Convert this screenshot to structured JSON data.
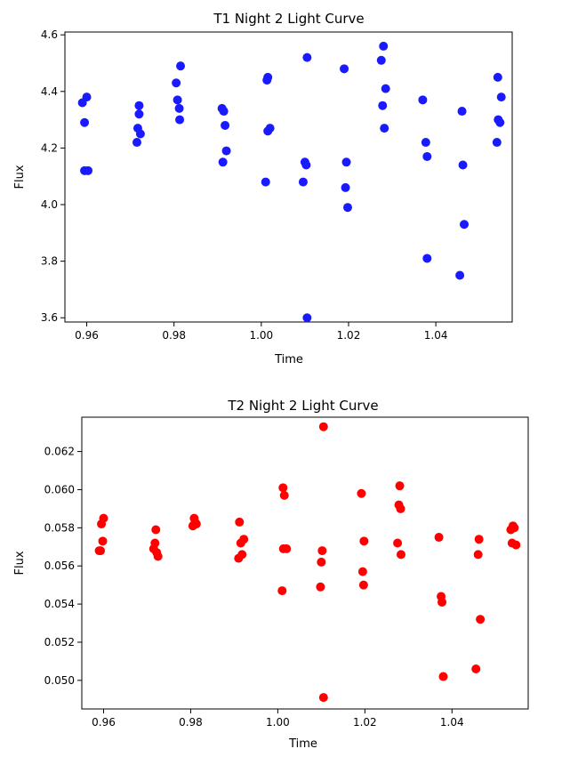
{
  "chart_data": [
    {
      "type": "scatter",
      "title": "T1 Night 2 Light Curve",
      "xlabel": "Time",
      "ylabel": "Flux",
      "xlim": [
        0.955,
        1.0575
      ],
      "ylim": [
        3.585,
        4.61
      ],
      "xticks": [
        0.96,
        0.98,
        1.0,
        1.02,
        1.04
      ],
      "xtick_labels": [
        "0.96",
        "0.98",
        "1.00",
        "1.02",
        "1.04"
      ],
      "yticks": [
        3.6,
        3.8,
        4.0,
        4.2,
        4.4,
        4.6
      ],
      "ytick_labels": [
        "3.6",
        "3.8",
        "4.0",
        "4.2",
        "4.4",
        "4.6"
      ],
      "grid": false,
      "color": "#1a1aff",
      "series": [
        {
          "points": [
            [
              0.959,
              4.36
            ],
            [
              0.9595,
              4.29
            ],
            [
              0.96,
              4.38
            ],
            [
              0.9595,
              4.12
            ],
            [
              0.9603,
              4.12
            ],
            [
              0.9715,
              4.22
            ],
            [
              0.9717,
              4.27
            ],
            [
              0.972,
              4.35
            ],
            [
              0.972,
              4.32
            ],
            [
              0.9723,
              4.25
            ],
            [
              0.9805,
              4.43
            ],
            [
              0.9808,
              4.37
            ],
            [
              0.9812,
              4.34
            ],
            [
              0.9813,
              4.3
            ],
            [
              0.9815,
              4.49
            ],
            [
              0.991,
              4.34
            ],
            [
              0.9912,
              4.15
            ],
            [
              0.9914,
              4.33
            ],
            [
              0.9917,
              4.28
            ],
            [
              0.992,
              4.19
            ],
            [
              1.001,
              4.08
            ],
            [
              1.0013,
              4.44
            ],
            [
              1.0015,
              4.45
            ],
            [
              1.0015,
              4.26
            ],
            [
              1.002,
              4.27
            ],
            [
              1.0096,
              4.08
            ],
            [
              1.01,
              4.15
            ],
            [
              1.0103,
              4.14
            ],
            [
              1.0105,
              4.52
            ],
            [
              1.0105,
              3.6
            ],
            [
              1.019,
              4.48
            ],
            [
              1.0193,
              4.06
            ],
            [
              1.0195,
              4.15
            ],
            [
              1.0198,
              3.99
            ],
            [
              1.0275,
              4.51
            ],
            [
              1.0278,
              4.35
            ],
            [
              1.028,
              4.56
            ],
            [
              1.0282,
              4.27
            ],
            [
              1.0285,
              4.41
            ],
            [
              1.037,
              4.37
            ],
            [
              1.0377,
              4.22
            ],
            [
              1.038,
              3.81
            ],
            [
              1.038,
              4.17
            ],
            [
              1.0455,
              3.75
            ],
            [
              1.046,
              4.33
            ],
            [
              1.0462,
              4.14
            ],
            [
              1.0465,
              3.93
            ],
            [
              1.054,
              4.22
            ],
            [
              1.0542,
              4.45
            ],
            [
              1.0543,
              4.3
            ],
            [
              1.0547,
              4.29
            ],
            [
              1.055,
              4.38
            ]
          ]
        }
      ]
    },
    {
      "type": "scatter",
      "title": "T2 Night 2 Light Curve",
      "xlabel": "Time",
      "ylabel": "Flux",
      "xlim": [
        0.955,
        1.0575
      ],
      "ylim": [
        0.0485,
        0.0638
      ],
      "xticks": [
        0.96,
        0.98,
        1.0,
        1.02,
        1.04
      ],
      "xtick_labels": [
        "0.96",
        "0.98",
        "1.00",
        "1.02",
        "1.04"
      ],
      "yticks": [
        0.05,
        0.052,
        0.054,
        0.056,
        0.058,
        0.06,
        0.062
      ],
      "ytick_labels": [
        "0.050",
        "0.052",
        "0.054",
        "0.056",
        "0.058",
        "0.060",
        "0.062"
      ],
      "grid": false,
      "color": "#ff0000",
      "series": [
        {
          "points": [
            [
              0.959,
              0.0568
            ],
            [
              0.9595,
              0.0582
            ],
            [
              0.9598,
              0.0573
            ],
            [
              0.96,
              0.0585
            ],
            [
              0.9593,
              0.0568
            ],
            [
              0.9715,
              0.0569
            ],
            [
              0.9718,
              0.0572
            ],
            [
              0.972,
              0.0579
            ],
            [
              0.9722,
              0.0567
            ],
            [
              0.9725,
              0.0565
            ],
            [
              0.9805,
              0.0581
            ],
            [
              0.9808,
              0.0585
            ],
            [
              0.981,
              0.0583
            ],
            [
              0.9813,
              0.0582
            ],
            [
              0.991,
              0.0564
            ],
            [
              0.9912,
              0.0583
            ],
            [
              0.9915,
              0.0572
            ],
            [
              0.9918,
              0.0566
            ],
            [
              0.9922,
              0.0574
            ],
            [
              1.001,
              0.0547
            ],
            [
              1.0012,
              0.0601
            ],
            [
              1.0015,
              0.0597
            ],
            [
              1.0013,
              0.0569
            ],
            [
              1.002,
              0.0569
            ],
            [
              1.0098,
              0.0549
            ],
            [
              1.01,
              0.0562
            ],
            [
              1.0102,
              0.0568
            ],
            [
              1.0105,
              0.0633
            ],
            [
              1.0105,
              0.0491
            ],
            [
              1.0192,
              0.0598
            ],
            [
              1.0195,
              0.0557
            ],
            [
              1.0197,
              0.055
            ],
            [
              1.0198,
              0.0573
            ],
            [
              1.0275,
              0.0572
            ],
            [
              1.0278,
              0.0592
            ],
            [
              1.028,
              0.0602
            ],
            [
              1.0282,
              0.059
            ],
            [
              1.0283,
              0.0566
            ],
            [
              1.037,
              0.0575
            ],
            [
              1.0375,
              0.0544
            ],
            [
              1.0377,
              0.0541
            ],
            [
              1.038,
              0.0502
            ],
            [
              1.0455,
              0.0506
            ],
            [
              1.046,
              0.0566
            ],
            [
              1.0462,
              0.0574
            ],
            [
              1.0465,
              0.0532
            ],
            [
              1.0535,
              0.0579
            ],
            [
              1.0538,
              0.0572
            ],
            [
              1.054,
              0.0581
            ],
            [
              1.0543,
              0.058
            ],
            [
              1.0547,
              0.0571
            ]
          ]
        }
      ]
    }
  ]
}
